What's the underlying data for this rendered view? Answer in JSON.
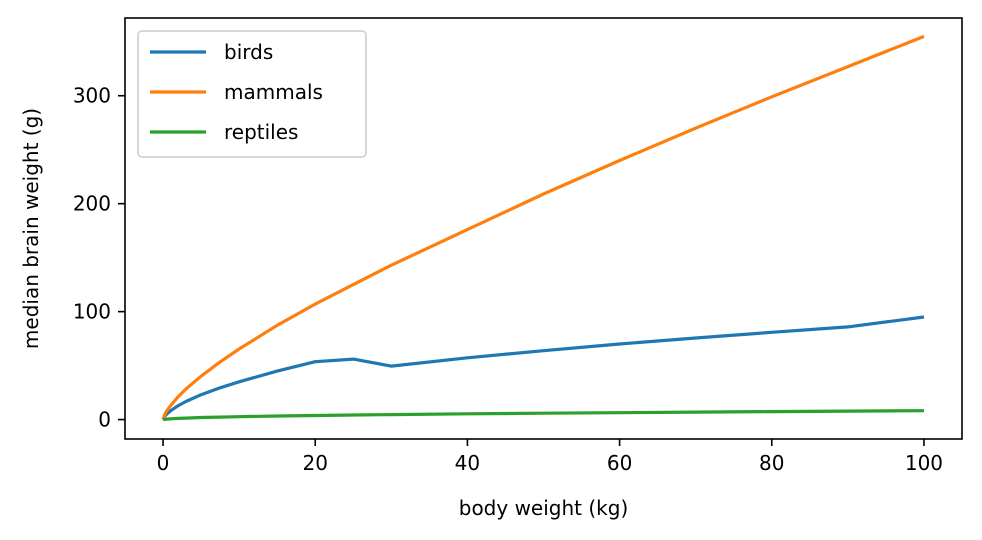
{
  "chart_data": {
    "type": "line",
    "xlabel": "body weight (kg)",
    "ylabel": "median brain weight (g)",
    "xlim": [
      -5,
      105
    ],
    "ylim": [
      -18,
      372
    ],
    "xticks": [
      0,
      20,
      40,
      60,
      80,
      100
    ],
    "yticks": [
      0,
      100,
      200,
      300
    ],
    "legend_position": "upper-left",
    "grid": false,
    "series": [
      {
        "name": "birds",
        "color": "#1f77b4",
        "x": [
          0,
          0.25,
          0.5,
          1,
          2,
          3,
          5,
          7.5,
          10,
          15,
          20,
          25,
          30,
          40,
          50,
          60,
          70,
          80,
          90,
          100
        ],
        "y": [
          0,
          3.3,
          5.2,
          8.2,
          12.9,
          16.7,
          23.0,
          29.4,
          35.0,
          44.9,
          53.6,
          56.0,
          49.5,
          57.2,
          63.8,
          70.0,
          75.6,
          80.8,
          85.8,
          95.0
        ]
      },
      {
        "name": "mammals",
        "color": "#ff7f0e",
        "x": [
          0,
          0.25,
          0.5,
          1,
          2,
          3,
          5,
          7.5,
          10,
          15,
          20,
          25,
          30,
          40,
          50,
          60,
          70,
          80,
          90,
          100
        ],
        "y": [
          0,
          5.0,
          8.1,
          13.1,
          21.3,
          28.3,
          40.2,
          53.4,
          65.4,
          87.3,
          107,
          125,
          143,
          176,
          209,
          240,
          270,
          299,
          327,
          355
        ]
      },
      {
        "name": "reptiles",
        "color": "#2ca02c",
        "x": [
          0,
          0.25,
          0.5,
          1,
          2,
          3,
          5,
          7.5,
          10,
          15,
          20,
          25,
          30,
          40,
          50,
          60,
          70,
          80,
          90,
          100
        ],
        "y": [
          0,
          0.28,
          0.45,
          0.7,
          1.1,
          1.4,
          1.9,
          2.3,
          2.7,
          3.3,
          3.8,
          4.2,
          4.6,
          5.3,
          5.9,
          6.4,
          6.9,
          7.4,
          7.8,
          8.2
        ]
      }
    ]
  }
}
